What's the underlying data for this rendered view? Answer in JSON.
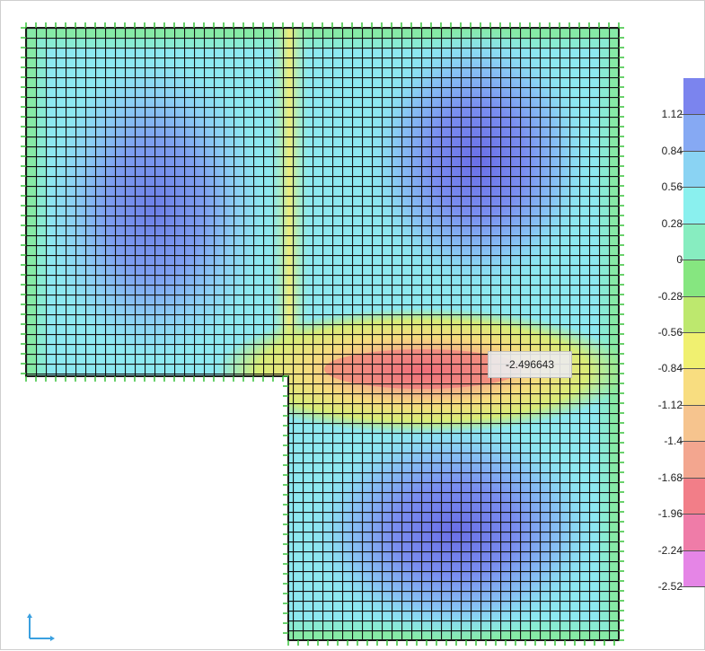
{
  "contour_plot": {
    "legend": {
      "labels": [
        "1.12",
        "0.84",
        "0.56",
        "0.28",
        "0",
        "-0.28",
        "-0.56",
        "-0.84",
        "-1.12",
        "-1.4",
        "-1.68",
        "-1.96",
        "-2.24",
        "-2.52"
      ],
      "colors": [
        "#7b84ee",
        "#86a9f3",
        "#8ad3f3",
        "#8af0ee",
        "#87edc0",
        "#86e680",
        "#bde86e",
        "#f0f070",
        "#f8dd80",
        "#f6c48e",
        "#f3a68f",
        "#f27e88",
        "#ef7ca8",
        "#e585e6"
      ]
    },
    "selected_value": "-2.496643"
  }
}
